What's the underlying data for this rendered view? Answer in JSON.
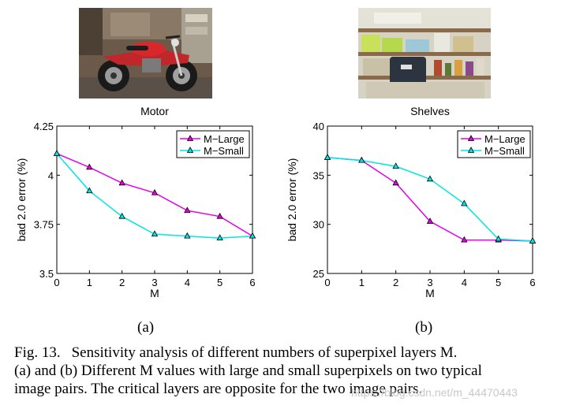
{
  "colors": {
    "m_large": "#e600e6",
    "m_small": "#00e6e6",
    "axis": "#000000"
  },
  "photos": [
    {
      "subject": "red motorcycle in a garage"
    },
    {
      "subject": "shelves with boxes and a bag"
    }
  ],
  "sublabels": [
    "(a)",
    "(b)"
  ],
  "chart_data": [
    {
      "type": "line",
      "title": "Motor",
      "xlabel": "M",
      "ylabel": "bad 2.0 error (%)",
      "x": [
        0,
        1,
        2,
        3,
        4,
        5,
        6
      ],
      "xlim": [
        0,
        6
      ],
      "ylim": [
        3.5,
        4.25
      ],
      "yticks": [
        3.5,
        3.75,
        4,
        4.25
      ],
      "ytick_labels": [
        "3.5",
        "3.75",
        "4",
        "4.25"
      ],
      "grid": false,
      "legend_position": "top-right",
      "series": [
        {
          "name": "M−Large",
          "values": [
            4.11,
            4.04,
            3.96,
            3.91,
            3.82,
            3.79,
            3.69
          ]
        },
        {
          "name": "M−Small",
          "values": [
            4.11,
            3.92,
            3.79,
            3.7,
            3.69,
            3.68,
            3.69
          ]
        }
      ]
    },
    {
      "type": "line",
      "title": "Shelves",
      "xlabel": "M",
      "ylabel": "bad 2.0 error (%)",
      "x": [
        0,
        1,
        2,
        3,
        4,
        5,
        6
      ],
      "xlim": [
        0,
        6
      ],
      "ylim": [
        25,
        40
      ],
      "yticks": [
        25,
        30,
        35,
        40
      ],
      "ytick_labels": [
        "25",
        "30",
        "35",
        "40"
      ],
      "grid": false,
      "legend_position": "top-right",
      "series": [
        {
          "name": "M−Large",
          "values": [
            36.8,
            36.5,
            34.2,
            30.3,
            28.4,
            28.4,
            28.3
          ]
        },
        {
          "name": "M−Small",
          "values": [
            36.8,
            36.5,
            35.9,
            34.6,
            32.1,
            28.5,
            28.3
          ]
        }
      ]
    }
  ],
  "caption": {
    "figno": "Fig. 13.",
    "line1": "Sensitivity analysis of different numbers of superpixel layers M.",
    "line2": "(a) and (b) Different M values with large and small superpixels on two typical",
    "line3": "image pairs. The critical layers are opposite for the two image pairs."
  },
  "watermark": "https://blog.csdn.net/m_44470443"
}
